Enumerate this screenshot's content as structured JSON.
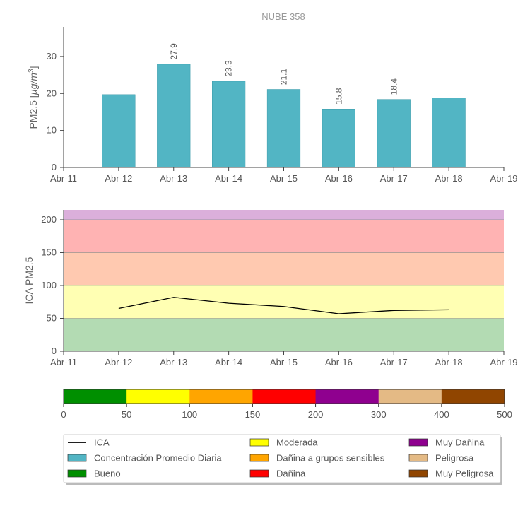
{
  "chart_data": [
    {
      "type": "bar",
      "title": "NUBE 358",
      "ylabel_prefix": "PM2.5 [",
      "ylabel_unit": "µg/m",
      "ylabel_exp": "3",
      "ylabel_suffix": "]",
      "x_ticks": [
        "Abr-11",
        "Abr-12",
        "Abr-13",
        "Abr-14",
        "Abr-15",
        "Abr-16",
        "Abr-17",
        "Abr-18",
        "Abr-19"
      ],
      "categories": [
        "Abr-12",
        "Abr-13",
        "Abr-14",
        "Abr-15",
        "Abr-16",
        "Abr-17",
        "Abr-18"
      ],
      "values": [
        19.7,
        27.9,
        23.3,
        21.1,
        15.8,
        18.4,
        18.8
      ],
      "data_labels": [
        "",
        "27.9",
        "23.3",
        "21.1",
        "15.8",
        "18.4",
        ""
      ],
      "y_ticks": [
        0,
        10,
        20,
        30
      ],
      "ylim": [
        0,
        38
      ],
      "color": "#52b5c4"
    },
    {
      "type": "line",
      "ylabel": "ICA PM2.5",
      "x_ticks": [
        "Abr-11",
        "Abr-12",
        "Abr-13",
        "Abr-14",
        "Abr-15",
        "Abr-16",
        "Abr-17",
        "Abr-18",
        "Abr-19"
      ],
      "categories": [
        "Abr-12",
        "Abr-13",
        "Abr-14",
        "Abr-15",
        "Abr-16",
        "Abr-17",
        "Abr-18"
      ],
      "values": [
        65,
        82,
        73,
        68,
        57,
        62,
        63
      ],
      "y_ticks": [
        0,
        50,
        100,
        150,
        200
      ],
      "ylim": [
        0,
        215
      ],
      "bands": [
        {
          "from": 0,
          "to": 50,
          "color": "#b3dbb3"
        },
        {
          "from": 50,
          "to": 100,
          "color": "#ffffb3"
        },
        {
          "from": 100,
          "to": 150,
          "color": "#ffc9b0"
        },
        {
          "from": 150,
          "to": 200,
          "color": "#ffb3b3"
        },
        {
          "from": 200,
          "to": 300,
          "color": "#dbafdb"
        }
      ],
      "color": "#000000"
    },
    {
      "type": "colorbar",
      "ticks": [
        "0",
        "50",
        "100",
        "150",
        "200",
        "300",
        "400",
        "500"
      ],
      "segments": [
        "#008f00",
        "#ffff00",
        "#ffa500",
        "#ff0000",
        "#8f008f",
        "#e4ba85",
        "#904500"
      ]
    }
  ],
  "legend": {
    "items": [
      {
        "label": "ICA",
        "type": "line",
        "color": "#000000",
        "col": 0,
        "row": 0
      },
      {
        "label": "Concentración Promedio Diaria",
        "type": "box",
        "color": "#52b5c4",
        "col": 0,
        "row": 1
      },
      {
        "label": "Bueno",
        "type": "box",
        "color": "#008f00",
        "col": 0,
        "row": 2
      },
      {
        "label": "Moderada",
        "type": "box",
        "color": "#ffff00",
        "col": 1,
        "row": 0
      },
      {
        "label": "Dañina a grupos sensibles",
        "type": "box",
        "color": "#ffa500",
        "col": 1,
        "row": 1
      },
      {
        "label": "Dañina",
        "type": "box",
        "color": "#ff0000",
        "col": 1,
        "row": 2
      },
      {
        "label": "Muy Dañina",
        "type": "box",
        "color": "#8f008f",
        "col": 2,
        "row": 0
      },
      {
        "label": "Peligrosa",
        "type": "box",
        "color": "#e4ba85",
        "col": 2,
        "row": 1
      },
      {
        "label": "Muy Peligrosa",
        "type": "box",
        "color": "#904500",
        "col": 2,
        "row": 2
      }
    ]
  }
}
